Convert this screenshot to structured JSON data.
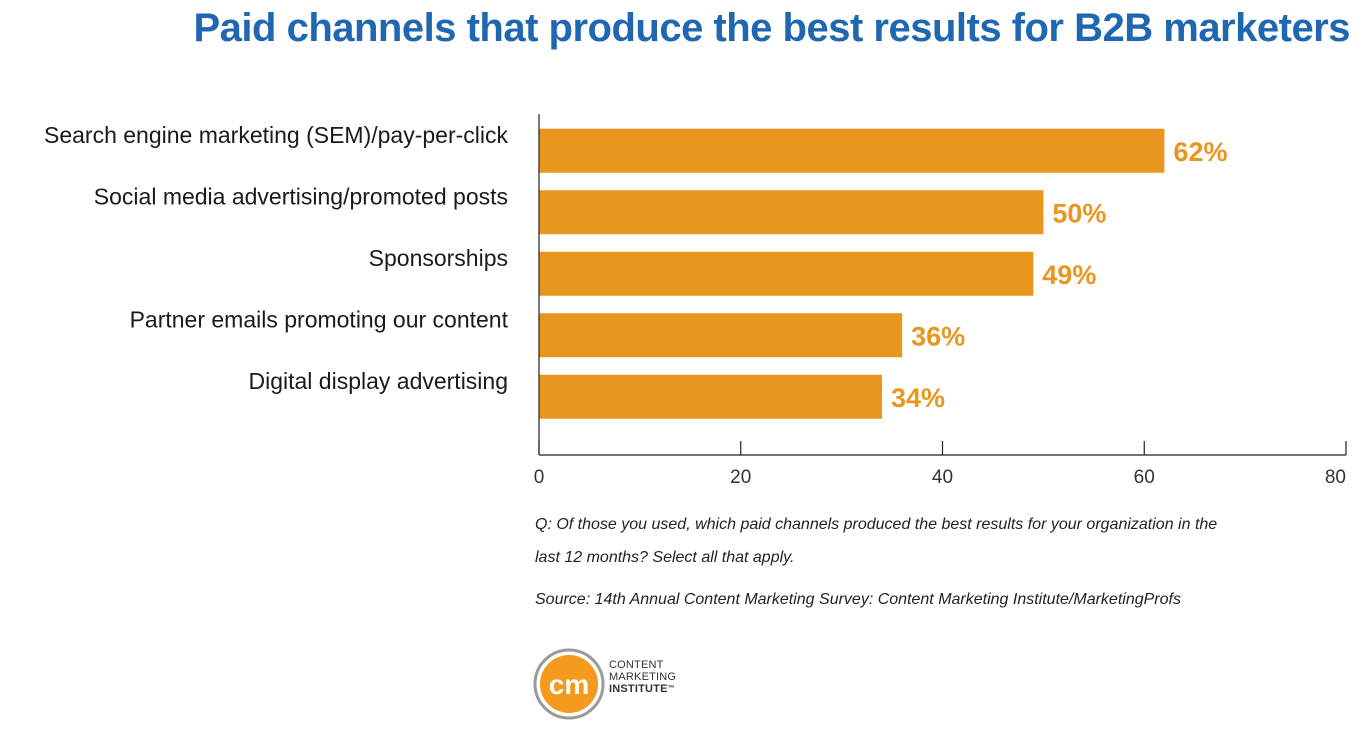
{
  "title": "Paid channels that produce the best results for B2B marketers",
  "chart_data": {
    "type": "bar",
    "orientation": "horizontal",
    "categories": [
      "Search engine marketing (SEM)/pay-per-click",
      "Social media advertising/promoted posts",
      "Sponsorships",
      "Partner emails promoting our content",
      "Digital display advertising"
    ],
    "values": [
      62,
      50,
      49,
      36,
      34
    ],
    "value_labels": [
      "62%",
      "50%",
      "49%",
      "36%",
      "34%"
    ],
    "xlim": [
      0,
      80
    ],
    "xticks": [
      0,
      20,
      40,
      60,
      80
    ],
    "grid": false,
    "bar_color": "#e8961e"
  },
  "notes": {
    "question_line1": "Q: Of those you used, which paid channels produced the best results for your organization in the",
    "question_line2": "last 12 months? Select all that apply.",
    "source": "Source: 14th Annual Content Marketing Survey: Content Marketing Institute/MarketingProfs"
  },
  "logo": {
    "mark": "cm",
    "line1": "CONTENT",
    "line2": "MARKETING",
    "line3": "INSTITUTE",
    "trademark": "™",
    "color_orange": "#f39a1f",
    "color_ring": "#9a9a9a"
  }
}
